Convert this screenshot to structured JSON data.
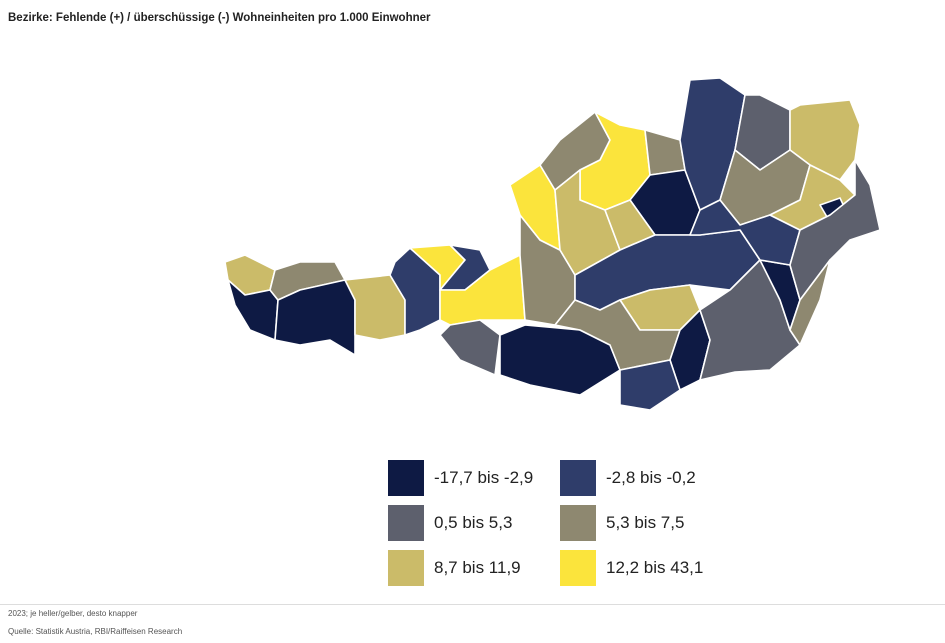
{
  "title": "Bezirke: Fehlende (+) / überschüssige (-) Wohneinheiten pro 1.000 Einwohner",
  "legend": [
    {
      "label": "-17,7 bis -2,9",
      "color": "#0e1a44"
    },
    {
      "label": "-2,8 bis -0,2",
      "color": "#2f3d6a"
    },
    {
      "label": "0,5 bis 5,3",
      "color": "#5d606d"
    },
    {
      "label": "5,3 bis 7,5",
      "color": "#8e8870"
    },
    {
      "label": "8,7 bis 11,9",
      "color": "#cbbb69"
    },
    {
      "label": "12,2 bis 43,1",
      "color": "#fbe43c"
    }
  ],
  "footnote": "2023; je heller/gelber, desto knapper",
  "source": "Quelle: Statistik Austria, RBI/Raiffeisen Research"
}
